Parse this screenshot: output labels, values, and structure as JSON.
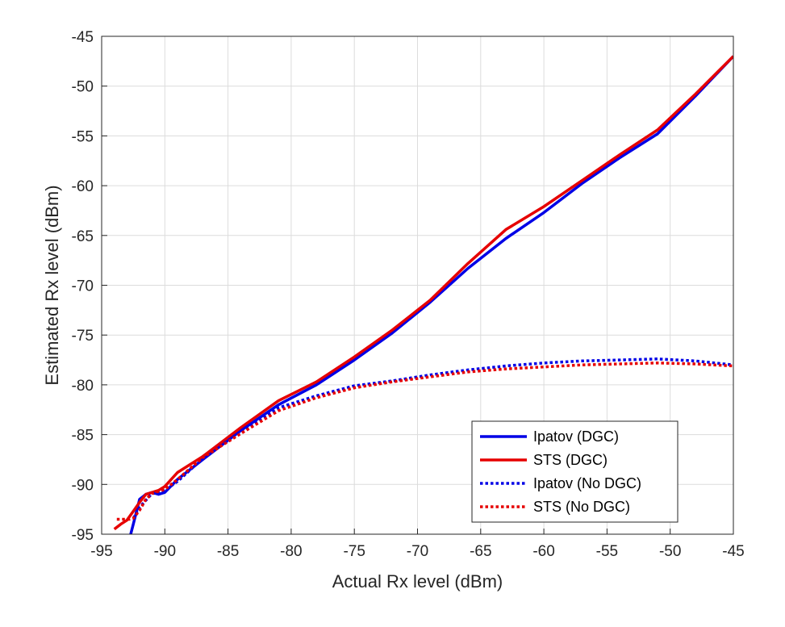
{
  "chart_data": {
    "type": "line",
    "title": "",
    "xlabel": "Actual Rx level (dBm)",
    "ylabel": "Estimated Rx level (dBm)",
    "xlim": [
      -95,
      -45
    ],
    "ylim": [
      -95,
      -45
    ],
    "xticks": [
      -95,
      -90,
      -85,
      -80,
      -75,
      -70,
      -65,
      -60,
      -55,
      -50,
      -45
    ],
    "yticks": [
      -95,
      -90,
      -85,
      -80,
      -75,
      -70,
      -65,
      -60,
      -55,
      -50,
      -45
    ],
    "grid": true,
    "legend_position": "bottom-right",
    "series": [
      {
        "name": "Ipatov (DGC)",
        "color": "#0000e6",
        "style": "solid",
        "x": [
          -92.7,
          -92.5,
          -92.0,
          -91.5,
          -91.0,
          -90.5,
          -90.0,
          -89.0,
          -87.0,
          -84.0,
          -81.0,
          -78.0,
          -75.0,
          -72.0,
          -69.0,
          -66.0,
          -63.0,
          -60.0,
          -57.0,
          -54.0,
          -51.0,
          -48.0,
          -45.0
        ],
        "values": [
          -95.0,
          -94.0,
          -91.5,
          -91.0,
          -90.8,
          -91.0,
          -90.8,
          -89.5,
          -87.5,
          -84.6,
          -82.0,
          -80.0,
          -77.5,
          -74.8,
          -71.7,
          -68.3,
          -65.3,
          -62.7,
          -59.8,
          -57.2,
          -54.8,
          -51.0,
          -47.0
        ]
      },
      {
        "name": "STS (DGC)",
        "color": "#e60000",
        "style": "solid",
        "x": [
          -94.0,
          -93.5,
          -93.0,
          -92.5,
          -92.0,
          -91.5,
          -91.0,
          -90.5,
          -90.0,
          -89.0,
          -87.0,
          -84.0,
          -81.0,
          -78.0,
          -75.0,
          -72.0,
          -69.0,
          -66.0,
          -63.0,
          -60.0,
          -57.0,
          -54.0,
          -51.0,
          -48.0,
          -45.0
        ],
        "values": [
          -94.5,
          -94.0,
          -93.6,
          -92.7,
          -91.8,
          -91.0,
          -90.8,
          -90.6,
          -90.2,
          -88.8,
          -87.2,
          -84.3,
          -81.6,
          -79.7,
          -77.2,
          -74.5,
          -71.5,
          -67.8,
          -64.4,
          -62.1,
          -59.5,
          -56.9,
          -54.4,
          -50.8,
          -47.0
        ]
      },
      {
        "name": "Ipatov (No DGC)",
        "color": "#0000e6",
        "style": "dotted",
        "x": [
          -92.5,
          -92.0,
          -91.5,
          -91.0,
          -90.5,
          -90.0,
          -89.0,
          -87.0,
          -84.0,
          -81.0,
          -78.0,
          -75.0,
          -72.0,
          -69.0,
          -66.0,
          -63.0,
          -60.0,
          -57.0,
          -54.0,
          -51.0,
          -48.0,
          -45.0
        ],
        "values": [
          -93.4,
          -92.3,
          -91.6,
          -90.9,
          -90.9,
          -90.6,
          -89.7,
          -87.4,
          -84.7,
          -82.3,
          -81.1,
          -80.1,
          -79.6,
          -79.0,
          -78.5,
          -78.1,
          -77.8,
          -77.6,
          -77.5,
          -77.4,
          -77.6,
          -78.0
        ]
      },
      {
        "name": "STS (No DGC)",
        "color": "#e60000",
        "style": "dotted",
        "x": [
          -93.8,
          -93.2,
          -92.8,
          -92.5,
          -92.0,
          -91.5,
          -91.0,
          -90.5,
          -90.0,
          -89.0,
          -87.0,
          -84.0,
          -81.0,
          -78.0,
          -75.0,
          -72.0,
          -69.0,
          -66.0,
          -63.0,
          -60.0,
          -57.0,
          -54.0,
          -51.0,
          -48.0,
          -45.0
        ],
        "values": [
          -93.5,
          -93.5,
          -93.5,
          -93.4,
          -92.6,
          -91.5,
          -90.9,
          -90.7,
          -90.5,
          -89.5,
          -87.3,
          -84.9,
          -82.6,
          -81.3,
          -80.3,
          -79.7,
          -79.2,
          -78.7,
          -78.4,
          -78.2,
          -78.0,
          -77.9,
          -77.8,
          -77.9,
          -78.1
        ]
      }
    ]
  }
}
